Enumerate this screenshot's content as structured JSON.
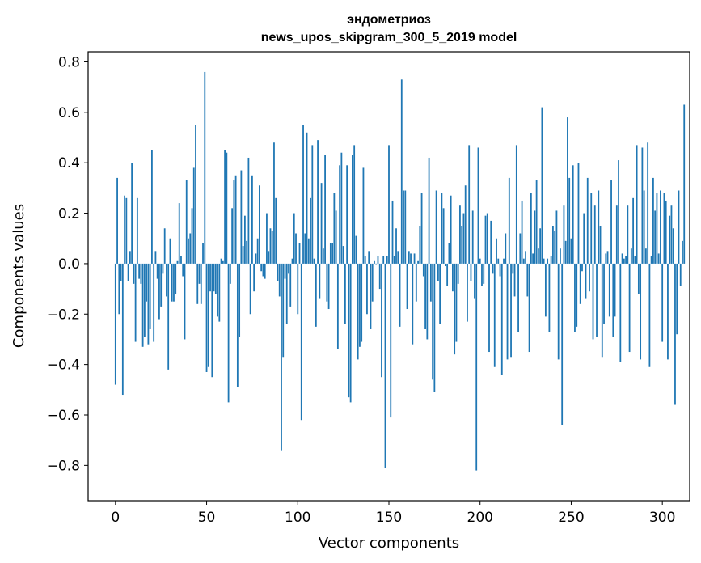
{
  "chart_data": {
    "type": "bar",
    "title": "эндометриоз",
    "subtitle": "news_upos_skipgram_300_5_2019 model",
    "xlabel": "Vector components",
    "ylabel": "Components values",
    "xlim": [
      -15,
      315
    ],
    "ylim": [
      -0.94,
      0.84
    ],
    "x_ticks": [
      0,
      50,
      100,
      150,
      200,
      250,
      300
    ],
    "x_tick_labels": [
      "0",
      "50",
      "100",
      "150",
      "200",
      "250",
      "300"
    ],
    "y_ticks": [
      -0.8,
      -0.6,
      -0.4,
      -0.2,
      0.0,
      0.2,
      0.4,
      0.6,
      0.8
    ],
    "y_tick_labels": [
      "−0.8",
      "−0.6",
      "−0.4",
      "−0.2",
      "0.0",
      "0.2",
      "0.4",
      "0.6",
      "0.8"
    ],
    "bar_color": "#1f77b4",
    "series": [
      {
        "name": "эндометриоз",
        "values": [
          -0.48,
          0.34,
          -0.2,
          -0.07,
          -0.52,
          0.27,
          0.26,
          -0.07,
          0.05,
          0.4,
          -0.08,
          -0.31,
          0.26,
          -0.06,
          -0.08,
          -0.33,
          -0.29,
          -0.15,
          -0.32,
          -0.26,
          0.45,
          -0.31,
          0.05,
          -0.06,
          -0.22,
          -0.17,
          -0.04,
          0.14,
          -0.13,
          -0.42,
          0.1,
          -0.15,
          -0.15,
          -0.12,
          0.01,
          0.24,
          0.03,
          -0.05,
          -0.3,
          0.33,
          0.1,
          0.12,
          0.22,
          0.38,
          0.55,
          -0.16,
          -0.08,
          -0.16,
          0.08,
          0.76,
          -0.43,
          -0.41,
          -0.11,
          -0.45,
          -0.11,
          -0.12,
          -0.21,
          -0.23,
          0.02,
          0.01,
          0.45,
          0.44,
          -0.55,
          -0.08,
          0.22,
          0.33,
          0.35,
          -0.49,
          -0.29,
          0.37,
          0.07,
          0.19,
          0.09,
          0.42,
          -0.2,
          0.35,
          -0.11,
          0.04,
          0.1,
          0.31,
          -0.03,
          -0.05,
          -0.06,
          0.2,
          0.05,
          0.14,
          0.13,
          0.48,
          0.26,
          -0.07,
          -0.13,
          -0.74,
          -0.37,
          -0.06,
          -0.24,
          -0.04,
          -0.17,
          0.02,
          0.2,
          0.12,
          -0.2,
          0.08,
          -0.62,
          0.55,
          0.12,
          0.52,
          0.1,
          0.26,
          0.47,
          0.02,
          -0.25,
          0.49,
          -0.14,
          0.32,
          0.06,
          0.43,
          -0.15,
          -0.18,
          0.08,
          0.08,
          0.28,
          0.21,
          -0.34,
          0.39,
          0.44,
          0.07,
          -0.24,
          0.39,
          -0.53,
          -0.55,
          0.43,
          0.47,
          0.11,
          -0.38,
          -0.33,
          -0.31,
          0.38,
          0.03,
          -0.2,
          0.05,
          -0.26,
          -0.15,
          0.01,
          0.0,
          0.03,
          -0.1,
          -0.45,
          0.03,
          -0.81,
          0.03,
          0.47,
          -0.61,
          0.25,
          0.03,
          0.14,
          0.05,
          -0.25,
          0.73,
          0.29,
          0.29,
          -0.18,
          0.05,
          0.04,
          -0.32,
          0.04,
          -0.15,
          0.01,
          0.15,
          0.28,
          -0.05,
          -0.26,
          -0.3,
          0.42,
          -0.15,
          -0.46,
          -0.51,
          0.29,
          -0.07,
          -0.24,
          0.28,
          0.22,
          -0.01,
          -0.09,
          0.08,
          0.27,
          -0.11,
          -0.36,
          -0.31,
          -0.08,
          0.23,
          0.15,
          0.2,
          0.31,
          -0.23,
          0.47,
          -0.07,
          0.21,
          -0.14,
          -0.82,
          0.46,
          0.02,
          -0.09,
          -0.08,
          0.19,
          0.2,
          -0.35,
          0.17,
          -0.04,
          -0.41,
          0.1,
          0.02,
          -0.05,
          -0.44,
          0.02,
          0.12,
          -0.38,
          0.34,
          -0.37,
          -0.04,
          -0.13,
          0.47,
          -0.27,
          0.12,
          0.25,
          0.02,
          0.05,
          -0.13,
          -0.35,
          0.28,
          0.04,
          0.21,
          0.33,
          0.06,
          0.14,
          0.62,
          0.02,
          -0.21,
          0.02,
          -0.27,
          0.03,
          0.15,
          0.13,
          0.21,
          -0.38,
          0.06,
          -0.64,
          0.23,
          0.09,
          0.58,
          0.34,
          0.1,
          0.39,
          -0.27,
          -0.25,
          0.4,
          -0.16,
          -0.03,
          0.2,
          -0.14,
          0.34,
          -0.11,
          0.28,
          -0.3,
          0.23,
          -0.29,
          0.29,
          0.15,
          -0.37,
          -0.24,
          0.04,
          0.05,
          -0.21,
          0.33,
          -0.29,
          -0.21,
          0.23,
          0.41,
          -0.39,
          0.04,
          0.02,
          0.03,
          0.23,
          -0.35,
          0.06,
          0.26,
          0.03,
          0.47,
          -0.12,
          -0.38,
          0.46,
          0.29,
          0.06,
          0.48,
          -0.41,
          0.03,
          0.34,
          0.21,
          0.28,
          0.04,
          0.29,
          -0.31,
          0.28,
          0.25,
          -0.38,
          0.19,
          0.23,
          0.14,
          -0.56,
          -0.28,
          0.29,
          -0.09,
          0.09,
          0.63
        ]
      }
    ]
  }
}
